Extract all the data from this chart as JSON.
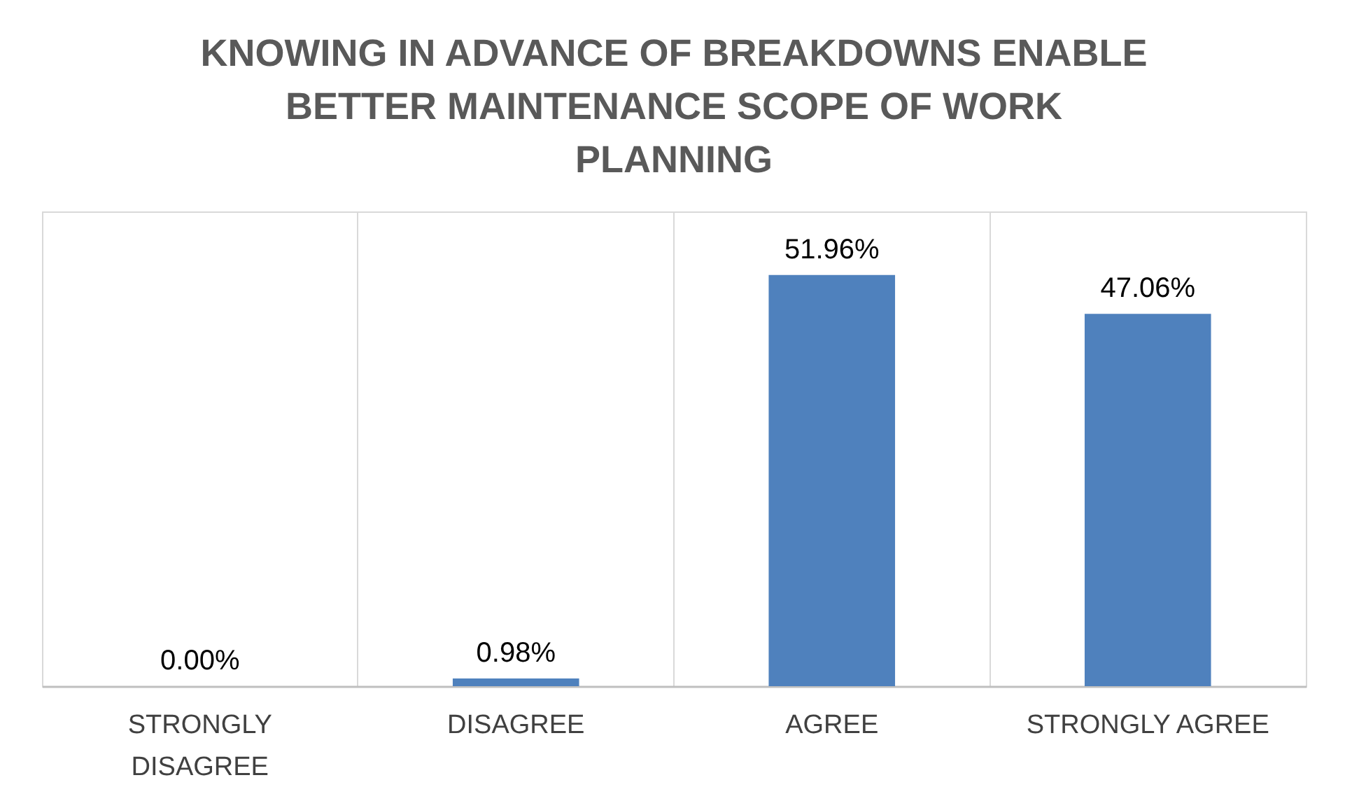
{
  "chart_data": {
    "type": "bar",
    "title": "KNOWING IN ADVANCE OF BREAKDOWNS ENABLE BETTER MAINTENANCE SCOPE OF WORK PLANNING",
    "categories": [
      "STRONGLY DISAGREE",
      "DISAGREE",
      "AGREE",
      "STRONGLY AGREE"
    ],
    "values": [
      0.0,
      0.98,
      51.96,
      47.06
    ],
    "value_labels": [
      "0.00%",
      "0.98%",
      "51.96%",
      "47.06%"
    ],
    "color": "#4f81bd",
    "ylim": [
      0,
      60
    ],
    "grid": "x"
  }
}
